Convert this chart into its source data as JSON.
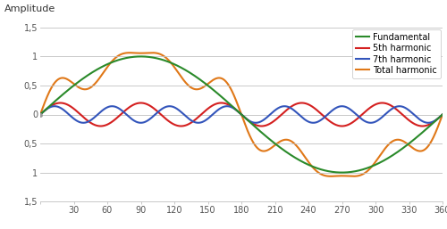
{
  "title": "Amplitude",
  "xlim": [
    0,
    360
  ],
  "ylim": [
    -1.5,
    1.5
  ],
  "xticks": [
    0,
    30,
    60,
    90,
    120,
    150,
    180,
    210,
    240,
    270,
    300,
    330,
    360
  ],
  "yticks": [
    -1.5,
    -1,
    -0.5,
    0,
    0.5,
    1,
    1.5
  ],
  "ytick_labels": [
    "1,5",
    "1",
    "0,5",
    "0",
    "0,5",
    "1",
    "1,5"
  ],
  "fundamental_color": "#2a8a2a",
  "fifth_color": "#d42020",
  "seventh_color": "#3355bb",
  "total_color": "#e07818",
  "legend_labels": [
    "Fundamental",
    "5th harmonic",
    "7th harmonic",
    "Total harmonic"
  ],
  "bg_color": "#ffffff",
  "grid_color": "#c0c0c0",
  "line_width": 1.5
}
